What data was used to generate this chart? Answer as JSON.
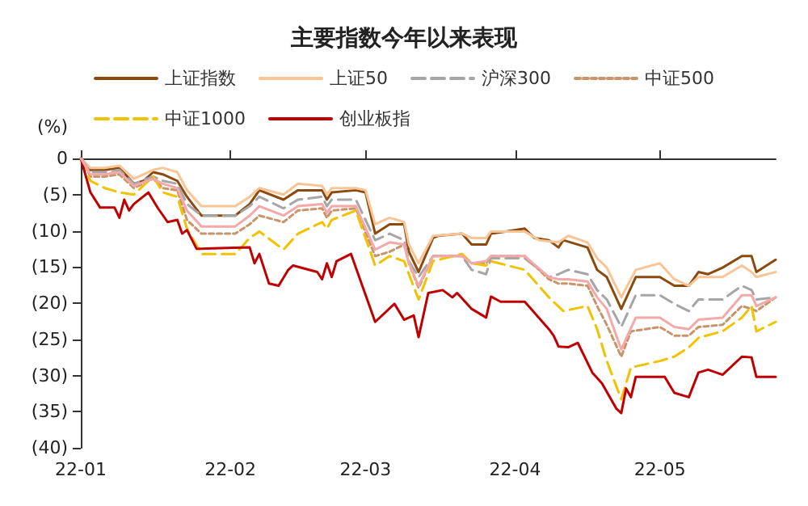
{
  "chart_data": {
    "type": "line",
    "title": "主要指数今年以来表现",
    "ylabel": "(%)",
    "legend": "top",
    "marker": "none",
    "grid": false,
    "xlim": [
      "--01-01",
      "--05-25"
    ],
    "xticks": [
      {
        "value": "--01-01",
        "label": "22-01"
      },
      {
        "value": "--02-01",
        "label": "22-02"
      },
      {
        "value": "--03-01",
        "label": "22-03"
      },
      {
        "value": "--04-01",
        "label": "22-04"
      },
      {
        "value": "--05-01",
        "label": "22-05"
      }
    ],
    "ylim": [
      -40,
      0
    ],
    "yticks": [
      {
        "value": -40,
        "label": "(40)"
      },
      {
        "value": -35,
        "label": "(35)"
      },
      {
        "value": -30,
        "label": "(30)"
      },
      {
        "value": -25,
        "label": "(25)"
      },
      {
        "value": -20,
        "label": "(20)"
      },
      {
        "value": -15,
        "label": "(15)"
      },
      {
        "value": -10,
        "label": "(10)"
      },
      {
        "value": -5,
        "label": "(5)"
      },
      0
    ],
    "series": [
      {
        "name": "上证指数",
        "color": "#8c4a0f",
        "line_style": "solid",
        "x": [
          "--01-01",
          "--01-03",
          "--01-06",
          "--01-09",
          "--01-12",
          "--01-14",
          "--01-16",
          "--01-18",
          "--01-21",
          "--01-23",
          "--01-26",
          "--02-02",
          "--02-05",
          "--02-07",
          "--02-12",
          "--02-15",
          "--02-20",
          "--02-21",
          "--02-22",
          "--02-27",
          "--03-01",
          "--03-03",
          "--03-06",
          "--03-09",
          "--03-10",
          "--03-12",
          "--03-15",
          "--03-16",
          "--03-21",
          "--03-23",
          "--03-26",
          "--03-27",
          "--03-30",
          "--04-03",
          "--04-05",
          "--04-08",
          "--04-10",
          "--04-11",
          "--04-16",
          "--04-18",
          "--04-20",
          "--04-23",
          "--04-26",
          "--05-01",
          "--05-04",
          "--05-07",
          "--05-09",
          "--05-11",
          "--05-14",
          "--05-18",
          "--05-20",
          "--05-21",
          "--05-25"
        ],
        "values": [
          0,
          -1.6,
          -1.6,
          -1.3,
          -3.5,
          -3.1,
          -1.9,
          -2.2,
          -3.1,
          -5.3,
          -7.9,
          -7.9,
          -6.3,
          -4.4,
          -5.7,
          -4.4,
          -4.4,
          -5.7,
          -4.7,
          -4.4,
          -4.7,
          -10.4,
          -9.1,
          -9.1,
          -12.9,
          -15.7,
          -11.0,
          -10.7,
          -10.4,
          -11.9,
          -11.9,
          -10.4,
          -10.1,
          -9.7,
          -11.0,
          -11.3,
          -12.3,
          -11.3,
          -12.3,
          -15.4,
          -16.4,
          -20.8,
          -16.4,
          -16.4,
          -17.6,
          -17.6,
          -15.7,
          -16.0,
          -15.1,
          -13.5,
          -13.5,
          -15.7,
          -14.0
        ]
      },
      {
        "name": "上证50",
        "color": "#f9c597",
        "line_style": "solid",
        "x": [
          "--01-01",
          "--01-03",
          "--01-06",
          "--01-09",
          "--01-12",
          "--01-16",
          "--01-18",
          "--01-21",
          "--01-23",
          "--01-26",
          "--02-02",
          "--02-05",
          "--02-07",
          "--02-12",
          "--02-15",
          "--02-20",
          "--02-21",
          "--02-22",
          "--02-27",
          "--03-01",
          "--03-03",
          "--03-06",
          "--03-09",
          "--03-10",
          "--03-12",
          "--03-15",
          "--03-21",
          "--03-23",
          "--03-26",
          "--03-27",
          "--04-03",
          "--04-06",
          "--04-10",
          "--04-12",
          "--04-16",
          "--04-18",
          "--04-20",
          "--04-23",
          "--04-26",
          "--05-01",
          "--05-04",
          "--05-07",
          "--05-09",
          "--05-14",
          "--05-18",
          "--05-20",
          "--05-21",
          "--05-25"
        ],
        "values": [
          0,
          -1.3,
          -1.3,
          -1.0,
          -2.8,
          -1.6,
          -1.3,
          -1.9,
          -4.4,
          -6.6,
          -6.6,
          -5.3,
          -4.1,
          -5.0,
          -3.5,
          -3.8,
          -5.0,
          -4.1,
          -4.1,
          -4.4,
          -9.1,
          -8.2,
          -8.8,
          -11.9,
          -14.5,
          -10.7,
          -10.4,
          -11.0,
          -11.0,
          -10.1,
          -10.1,
          -11.3,
          -11.6,
          -10.7,
          -11.6,
          -13.8,
          -15.1,
          -19.2,
          -15.4,
          -14.5,
          -16.7,
          -17.6,
          -16.4,
          -16.4,
          -14.8,
          -15.7,
          -16.4,
          -15.7
        ]
      },
      {
        "name": "沪深300",
        "color": "#a6a6a6",
        "line_style": "dashed",
        "x": [
          "--01-01",
          "--01-03",
          "--01-06",
          "--01-09",
          "--01-12",
          "--01-16",
          "--01-18",
          "--01-21",
          "--01-23",
          "--01-26",
          "--02-02",
          "--02-05",
          "--02-07",
          "--02-12",
          "--02-15",
          "--02-20",
          "--02-21",
          "--02-22",
          "--02-27",
          "--03-03",
          "--03-06",
          "--03-09",
          "--03-10",
          "--03-12",
          "--03-15",
          "--03-21",
          "--03-23",
          "--03-26",
          "--03-27",
          "--04-03",
          "--04-08",
          "--04-10",
          "--04-12",
          "--04-16",
          "--04-18",
          "--04-20",
          "--04-23",
          "--04-26",
          "--05-01",
          "--05-04",
          "--05-07",
          "--05-09",
          "--05-14",
          "--05-18",
          "--05-20",
          "--05-21",
          "--05-25"
        ],
        "values": [
          0,
          -1.9,
          -1.9,
          -1.6,
          -3.5,
          -2.5,
          -3.1,
          -3.5,
          -6.3,
          -7.9,
          -7.9,
          -6.6,
          -5.3,
          -6.9,
          -5.7,
          -5.3,
          -6.6,
          -5.7,
          -5.7,
          -11.3,
          -10.4,
          -11.3,
          -14.2,
          -16.4,
          -13.5,
          -13.5,
          -15.4,
          -16.0,
          -13.8,
          -13.8,
          -16.4,
          -16.0,
          -15.4,
          -16.0,
          -18.2,
          -19.5,
          -23.3,
          -18.9,
          -18.9,
          -20.1,
          -21.1,
          -19.5,
          -19.5,
          -17.6,
          -18.2,
          -19.5,
          -19.2
        ]
      },
      {
        "name": "中证500",
        "color": "#c8946a",
        "line_style": "dotted",
        "x": [
          "--01-01",
          "--01-03",
          "--01-06",
          "--01-09",
          "--01-12",
          "--01-16",
          "--01-18",
          "--01-21",
          "--01-23",
          "--01-26",
          "--02-02",
          "--02-05",
          "--02-07",
          "--02-12",
          "--02-15",
          "--02-20",
          "--02-21",
          "--02-22",
          "--02-27",
          "--03-03",
          "--03-06",
          "--03-09",
          "--03-10",
          "--03-12",
          "--03-15",
          "--03-21",
          "--03-23",
          "--03-26",
          "--03-27",
          "--04-03",
          "--04-08",
          "--04-10",
          "--04-12",
          "--04-16",
          "--04-18",
          "--04-20",
          "--04-23",
          "--04-25",
          "--05-01",
          "--05-04",
          "--05-07",
          "--05-09",
          "--05-14",
          "--05-18",
          "--05-20",
          "--05-21",
          "--05-25"
        ],
        "values": [
          0,
          -2.5,
          -2.5,
          -2.2,
          -4.1,
          -2.8,
          -4.1,
          -4.4,
          -8.5,
          -10.4,
          -10.4,
          -9.1,
          -7.9,
          -8.8,
          -7.2,
          -6.9,
          -8.2,
          -7.2,
          -6.9,
          -13.5,
          -12.9,
          -11.9,
          -14.5,
          -17.9,
          -13.5,
          -13.5,
          -14.5,
          -14.5,
          -13.5,
          -13.5,
          -16.7,
          -17.3,
          -17.3,
          -17.6,
          -20.4,
          -23.0,
          -27.4,
          -23.9,
          -23.3,
          -24.5,
          -24.5,
          -23.3,
          -23.0,
          -20.4,
          -20.8,
          -21.1,
          -19.2
        ]
      },
      {
        "name": "中证1000",
        "color": "#f2c100",
        "line_style": "dashed",
        "x": [
          "--01-01",
          "--01-03",
          "--01-06",
          "--01-09",
          "--01-12",
          "--01-16",
          "--01-18",
          "--01-21",
          "--01-23",
          "--01-26",
          "--02-02",
          "--02-05",
          "--02-07",
          "--02-12",
          "--02-15",
          "--02-20",
          "--02-21",
          "--02-22",
          "--02-27",
          "--03-03",
          "--03-06",
          "--03-09",
          "--03-10",
          "--03-12",
          "--03-15",
          "--03-21",
          "--03-23",
          "--03-26",
          "--03-27",
          "--04-03",
          "--04-08",
          "--04-11",
          "--04-16",
          "--04-18",
          "--04-20",
          "--04-23",
          "--04-25",
          "--05-01",
          "--05-04",
          "--05-07",
          "--05-09",
          "--05-14",
          "--05-18",
          "--05-20",
          "--05-21",
          "--05-25"
        ],
        "values": [
          0,
          -3.1,
          -4.1,
          -4.7,
          -5.0,
          -2.5,
          -4.7,
          -5.3,
          -9.7,
          -13.2,
          -13.2,
          -11.0,
          -10.1,
          -12.6,
          -10.4,
          -8.8,
          -9.7,
          -8.5,
          -7.2,
          -14.8,
          -13.5,
          -14.2,
          -16.0,
          -19.5,
          -14.2,
          -13.2,
          -14.5,
          -14.8,
          -14.2,
          -15.4,
          -19.2,
          -21.1,
          -20.4,
          -23.6,
          -28.0,
          -33.3,
          -28.9,
          -28.0,
          -27.4,
          -26.1,
          -24.8,
          -23.9,
          -22.0,
          -20.4,
          -23.9,
          -22.6
        ]
      },
      {
        "name": "创业板指",
        "color": "#c00000",
        "line_style": "solid",
        "x": [
          "--01-01",
          "--01-03",
          "--01-05",
          "--01-08",
          "--01-09",
          "--01-10",
          "--01-11",
          "--01-12",
          "--01-15",
          "--01-17",
          "--01-19",
          "--01-21",
          "--01-22",
          "--01-23",
          "--01-25",
          "--02-05",
          "--02-06",
          "--02-07",
          "--02-09",
          "--02-11",
          "--02-13",
          "--02-14",
          "--02-19",
          "--02-20",
          "--02-21",
          "--02-22",
          "--02-23",
          "--02-26",
          "--03-03",
          "--03-07",
          "--03-09",
          "--03-11",
          "--03-12",
          "--03-14",
          "--03-17",
          "--03-19",
          "--03-20",
          "--03-23",
          "--03-26",
          "--03-27",
          "--03-29",
          "--04-03",
          "--04-08",
          "--04-09",
          "--04-10",
          "--04-12",
          "--04-14",
          "--04-17",
          "--04-19",
          "--04-22",
          "--04-23",
          "--04-24",
          "--04-25",
          "--04-26",
          "--04-30",
          "--05-02",
          "--05-04",
          "--05-07",
          "--05-09",
          "--05-11",
          "--05-14",
          "--05-18",
          "--05-20",
          "--05-21",
          "--05-25"
        ],
        "values": [
          0,
          -4.7,
          -6.8,
          -6.8,
          -8.2,
          -5.7,
          -7.2,
          -6.3,
          -4.7,
          -6.9,
          -8.8,
          -8.5,
          -10.4,
          -9.9,
          -12.5,
          -12.3,
          -14.5,
          -13.2,
          -17.3,
          -17.6,
          -15.4,
          -14.8,
          -15.7,
          -16.7,
          -14.5,
          -16.4,
          -14.2,
          -13.2,
          -22.6,
          -20.1,
          -22.3,
          -21.7,
          -24.7,
          -18.6,
          -18.2,
          -19.2,
          -18.6,
          -20.8,
          -22.0,
          -19.1,
          -19.8,
          -19.8,
          -23.6,
          -24.5,
          -26.0,
          -26.1,
          -25.5,
          -29.6,
          -31.1,
          -34.6,
          -35.2,
          -31.8,
          -33.0,
          -30.2,
          -30.2,
          -30.2,
          -32.4,
          -33.0,
          -29.6,
          -29.2,
          -29.9,
          -27.4,
          -27.5,
          -30.2,
          -30.2
        ]
      },
      {
        "color": "#f4a8a8",
        "line_style": "solid",
        "x": [
          "--01-01",
          "--01-03",
          "--01-06",
          "--01-09",
          "--01-12",
          "--01-16",
          "--01-18",
          "--01-21",
          "--01-23",
          "--01-26",
          "--02-02",
          "--02-05",
          "--02-07",
          "--02-12",
          "--02-15",
          "--02-20",
          "--02-21",
          "--02-22",
          "--02-27",
          "--03-03",
          "--03-06",
          "--03-09",
          "--03-10",
          "--03-12",
          "--03-15",
          "--03-21",
          "--03-23",
          "--03-26",
          "--03-27",
          "--04-03",
          "--04-08",
          "--04-10",
          "--04-12",
          "--04-16",
          "--04-18",
          "--04-20",
          "--04-23",
          "--04-26",
          "--05-01",
          "--05-04",
          "--05-07",
          "--05-09",
          "--05-14",
          "--05-18",
          "--05-20",
          "--05-21",
          "--05-25"
        ],
        "values": [
          0,
          -2.2,
          -2.2,
          -1.9,
          -3.8,
          -2.8,
          -3.5,
          -4.1,
          -7.2,
          -9.4,
          -9.4,
          -7.9,
          -6.6,
          -7.9,
          -6.6,
          -6.3,
          -7.5,
          -6.6,
          -6.6,
          -12.6,
          -11.6,
          -11.9,
          -14.5,
          -17.6,
          -13.5,
          -13.5,
          -14.5,
          -14.2,
          -13.5,
          -13.5,
          -16.4,
          -16.7,
          -16.7,
          -17.0,
          -19.2,
          -20.8,
          -26.4,
          -22.0,
          -22.0,
          -23.3,
          -23.6,
          -22.3,
          -22.0,
          -18.9,
          -18.9,
          -20.4,
          -19.2
        ]
      }
    ]
  }
}
